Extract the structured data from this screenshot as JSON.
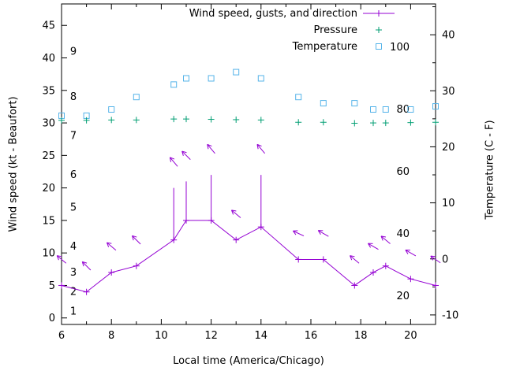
{
  "axes": {
    "x": {
      "label": "Local time (America/Chicago)",
      "min": 6,
      "max": 21,
      "major_ticks": [
        6,
        8,
        10,
        12,
        14,
        16,
        18,
        20
      ],
      "minor_tick_step": 1
    },
    "y_left": {
      "label": "Wind speed (kt - Beaufort)",
      "min": -1,
      "max": 48.3,
      "major_ticks": [
        0,
        5,
        10,
        15,
        20,
        25,
        30,
        35,
        40,
        45
      ],
      "inner_scale": {
        "name": "beaufort",
        "labels": [
          "1",
          "2",
          "3",
          "4",
          "5",
          "6",
          "7",
          "8",
          "9"
        ],
        "positions_kt": [
          1,
          4,
          7,
          11,
          17,
          22,
          28,
          34,
          41
        ]
      }
    },
    "y_right": {
      "label": "Temperature (C - F)",
      "min": -11.7,
      "max": 45.5,
      "major_ticks": [
        -10,
        0,
        10,
        20,
        30,
        40
      ],
      "minor_tick_step": 5,
      "inner_scale": {
        "name": "fahrenheit",
        "labels": [
          "20",
          "40",
          "60",
          "80",
          "100"
        ],
        "positions_f": [
          20,
          40,
          60,
          80,
          100
        ]
      }
    }
  },
  "legend": {
    "entries": [
      {
        "label": "Wind speed, gusts, and direction",
        "series": "wind"
      },
      {
        "label": "Pressure",
        "series": "pressure"
      },
      {
        "label": "Temperature",
        "series": "temperature"
      }
    ]
  },
  "chart_data": {
    "type": "line",
    "title": "",
    "x_hours": [
      6,
      7,
      8,
      9,
      10.5,
      11,
      12,
      13,
      14,
      15.5,
      16.5,
      17.75,
      18.5,
      19,
      20,
      21
    ],
    "series": [
      {
        "key": "wind",
        "name": "Wind speed, gusts, and direction",
        "axis": "left",
        "color": "#9400d3",
        "marker": "plus",
        "style": "line+points+gustbars+arrows",
        "speed_kt": [
          5,
          4,
          7,
          8,
          12,
          15,
          15,
          12,
          14,
          9,
          9,
          5,
          7,
          8,
          6,
          5
        ],
        "gust_kt": [
          5,
          4,
          7,
          8,
          20,
          21,
          22,
          12,
          22,
          9,
          9,
          5,
          7,
          8,
          6,
          5
        ],
        "dir_angle_deg": [
          140,
          135,
          140,
          135,
          130,
          135,
          130,
          140,
          130,
          155,
          150,
          140,
          150,
          140,
          150,
          145
        ],
        "arrow_offset_kt": 4
      },
      {
        "key": "pressure",
        "name": "Pressure",
        "axis": "left",
        "color": "#009e73",
        "marker": "plus",
        "style": "points",
        "values": [
          30.4,
          30.4,
          30.45,
          30.45,
          30.6,
          30.6,
          30.55,
          30.5,
          30.45,
          30.1,
          30.1,
          29.95,
          30.0,
          30.0,
          30.05,
          30.1
        ]
      },
      {
        "key": "temperature",
        "name": "Temperature",
        "axis": "right",
        "color": "#56b4e9",
        "marker": "square",
        "style": "points",
        "values_f": [
          78,
          78,
          80,
          84,
          88,
          90,
          90,
          92,
          90,
          84,
          82,
          82,
          80,
          80,
          80,
          81
        ]
      }
    ]
  }
}
